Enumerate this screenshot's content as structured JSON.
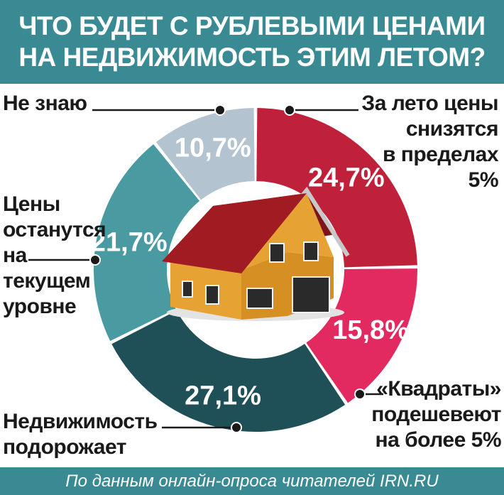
{
  "header": {
    "line1": "ЧТО БУДЕТ С РУБЛЕВЫМИ ЦЕНАМИ",
    "line2": "НА НЕДВИЖИМОСТЬ ЭТИМ ЛЕТОМ?"
  },
  "footer": {
    "source": "По данным онлайн-опроса читателей IRN.RU"
  },
  "labels": {
    "dont_know": "Не знаю",
    "decrease_5_line1": "За лето цены",
    "decrease_5_line2": "снизятся",
    "decrease_5_line3": "в пределах",
    "decrease_5_line4": "5%",
    "decrease_more_line1": "«Квадраты»",
    "decrease_more_line2": "подешевеют",
    "decrease_more_line3": "на более 5%",
    "rise_line1": "Недвижимость",
    "rise_line2": "подорожает",
    "same_line1": "Цены",
    "same_line2": "останутся",
    "same_line3": "на",
    "same_line4": "текущем",
    "same_line5": "уровне"
  },
  "chart_data": {
    "type": "pie",
    "title": "ЧТО БУДЕТ С РУБЛЕВЫМИ ЦЕНАМИ НА НЕДВИЖИМОСТЬ ЭТИМ ЛЕТОМ?",
    "donut": true,
    "slices": [
      {
        "label": "За лето цены снизятся в пределах 5%",
        "value": 24.7,
        "text": "24,7%",
        "color": "#c0213a"
      },
      {
        "label": "«Квадраты» подешевеют на более 5%",
        "value": 15.8,
        "text": "15,8%",
        "color": "#e22a60"
      },
      {
        "label": "Недвижимость подорожает",
        "value": 27.1,
        "text": "27,1%",
        "color": "#1f4f57"
      },
      {
        "label": "Цены останутся на текущем уровне",
        "value": 21.7,
        "text": "21,7%",
        "color": "#4a9aa1"
      },
      {
        "label": "Не знаю",
        "value": 10.7,
        "text": "10,7%",
        "color": "#b4c3d0"
      }
    ]
  },
  "colors": {
    "header_bg": "#3a8a93",
    "roof": "#9a1c22",
    "wall": "#e7a234",
    "window": "#2a2a2a"
  }
}
